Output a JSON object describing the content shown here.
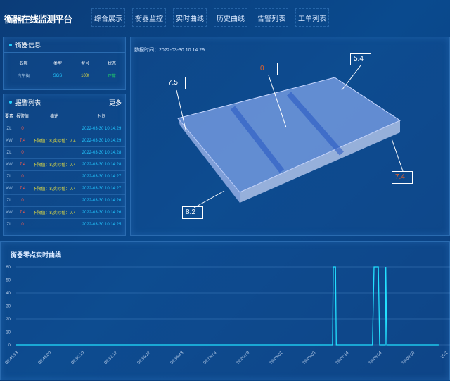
{
  "header": {
    "title": "衡器在线监测平台",
    "nav": [
      "综合展示",
      "衡器监控",
      "实时曲线",
      "历史曲线",
      "告警列表",
      "工单列表"
    ]
  },
  "info": {
    "title": "衡器信息",
    "columns": [
      "名称",
      "类型",
      "型号",
      "状态"
    ],
    "row": [
      "汽车衡",
      "SGS",
      "100t",
      "正常"
    ],
    "colors": {
      "type": "#22c7ff",
      "model": "#e8e040",
      "status": "#22dd66"
    }
  },
  "alarms": {
    "title": "报警列表",
    "more": "更多",
    "columns": [
      "要素",
      "报警值",
      "描述",
      "时间"
    ],
    "rows": [
      [
        "ZL",
        "0",
        "",
        "2022-03-30 10:14:29"
      ],
      [
        "XW",
        "7.4",
        "下限值：8,实际值：7.4",
        "2022-03-30 10:14:29"
      ],
      [
        "ZL",
        "0",
        "",
        "2022-03-30 10:14:28"
      ],
      [
        "XW",
        "7.4",
        "下限值：8,实际值：7.4",
        "2022-03-30 10:14:28"
      ],
      [
        "ZL",
        "0",
        "",
        "2022-03-30 10:14:27"
      ],
      [
        "XW",
        "7.4",
        "下限值：8,实际值：7.4",
        "2022-03-30 10:14:27"
      ],
      [
        "ZL",
        "0",
        "",
        "2022-03-30 10:14:26"
      ],
      [
        "XW",
        "7.4",
        "下限值：8,实际值：7.4",
        "2022-03-30 10:14:26"
      ],
      [
        "ZL",
        "0",
        "",
        "2022-03-30 10:14:25"
      ]
    ]
  },
  "model": {
    "data_time": "数据时间：2022-03-30 10:14:29",
    "labels": {
      "top_left": "7.5",
      "center": "0",
      "top_right": "5.4",
      "bottom_right": "7.4",
      "bottom_left": "8.2"
    },
    "alert_color": "#e0602a"
  },
  "chart_data": {
    "type": "line",
    "title": "衡器零点实时曲线",
    "ylim": [
      0,
      60
    ],
    "yticks": [
      0,
      10,
      20,
      30,
      40,
      50,
      60
    ],
    "grid": true,
    "line_color": "#22e0ff",
    "xticks": [
      "09:45:53",
      "09:48:00",
      "09:50:10",
      "09:52:17",
      "09:54:27",
      "09:56:43",
      "09:58:54",
      "10:00:59",
      "10:03:01",
      "10:05:03",
      "10:07:14",
      "10:08:54",
      "10:09:59",
      "10:1"
    ],
    "points": [
      [
        "09:45:53",
        0
      ],
      [
        "10:06:18",
        0
      ],
      [
        "10:06:21",
        60
      ],
      [
        "10:06:30",
        60
      ],
      [
        "10:06:33",
        0
      ],
      [
        "10:08:32",
        0
      ],
      [
        "10:08:37",
        60
      ],
      [
        "10:08:50",
        60
      ],
      [
        "10:08:54",
        0
      ],
      [
        "10:09:05",
        0
      ],
      [
        "10:09:06",
        60
      ],
      [
        "10:09:08",
        0
      ],
      [
        "10:10:50",
        0
      ]
    ]
  }
}
